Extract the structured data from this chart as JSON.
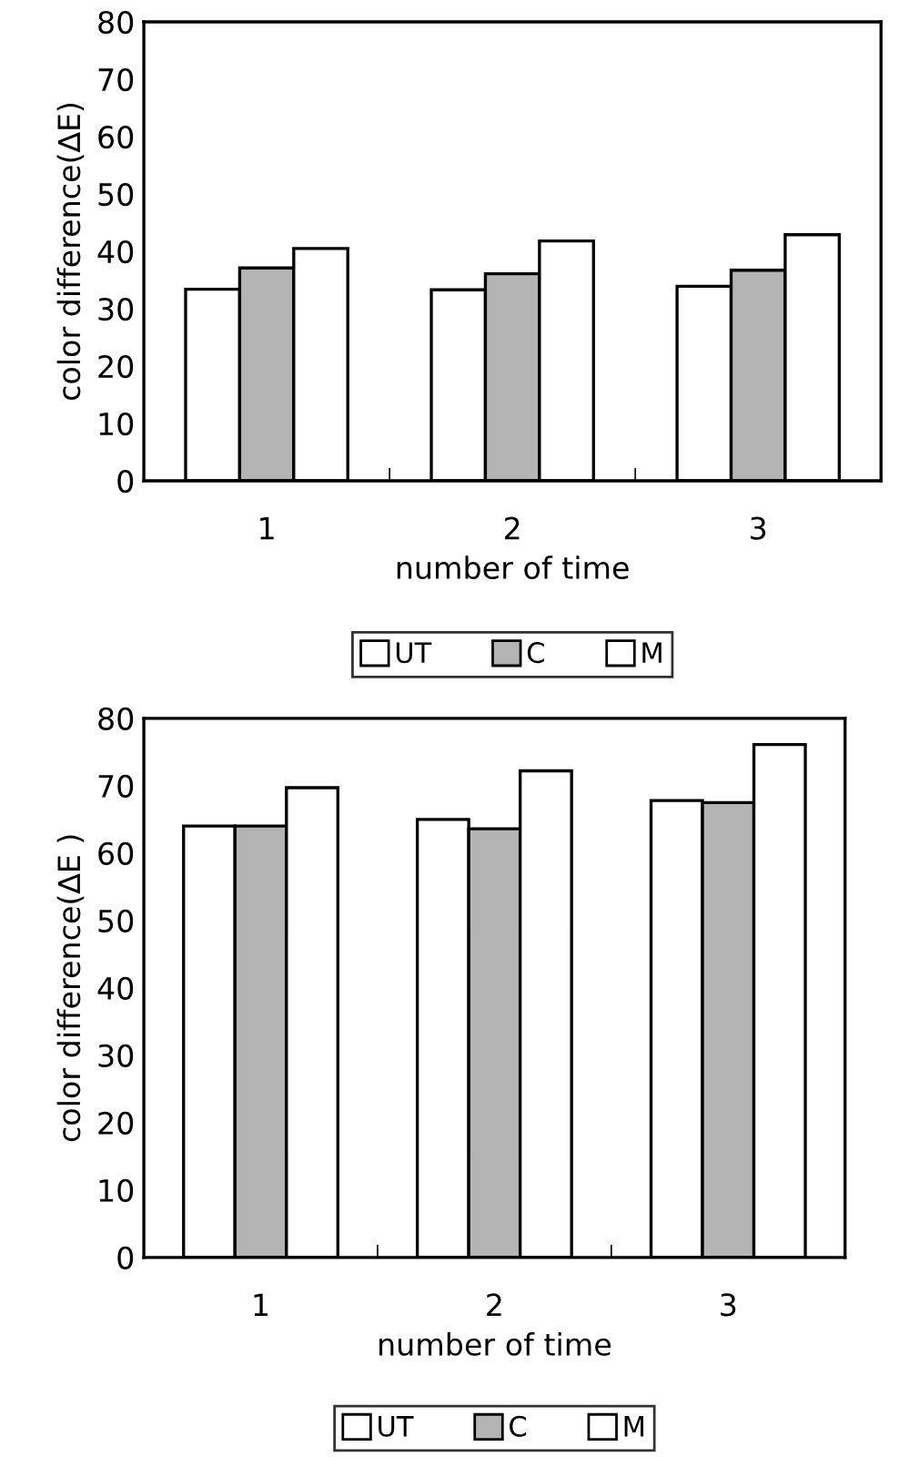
{
  "chart_data": [
    {
      "type": "bar",
      "categories": [
        "1",
        "2",
        "3"
      ],
      "xlabel": "number of time",
      "ylabel": "color difference(∆E)",
      "ylim": [
        0,
        80
      ],
      "yticks": [
        0,
        10,
        20,
        30,
        40,
        50,
        60,
        70,
        80
      ],
      "grid": false,
      "legend": "bottom",
      "series": [
        {
          "name": "UT",
          "color": "#ffffff",
          "values": [
            33.4,
            33.3,
            33.9
          ]
        },
        {
          "name": "C",
          "color": "#b4b4b4",
          "values": [
            37.1,
            36.1,
            36.7
          ]
        },
        {
          "name": "M",
          "color": "#ffffff",
          "values": [
            40.5,
            41.8,
            42.9
          ]
        }
      ]
    },
    {
      "type": "bar",
      "categories": [
        "1",
        "2",
        "3"
      ],
      "xlabel": "number of time",
      "ylabel": "color difference(∆E )",
      "ylim": [
        0,
        80
      ],
      "yticks": [
        0,
        10,
        20,
        30,
        40,
        50,
        60,
        70,
        80
      ],
      "grid": false,
      "legend": "bottom",
      "series": [
        {
          "name": "UT",
          "color": "#ffffff",
          "values": [
            64.0,
            65.0,
            67.8
          ]
        },
        {
          "name": "C",
          "color": "#b4b4b4",
          "values": [
            64.0,
            63.6,
            67.5
          ]
        },
        {
          "name": "M",
          "color": "#ffffff",
          "values": [
            69.7,
            72.2,
            76.1
          ]
        }
      ]
    }
  ]
}
